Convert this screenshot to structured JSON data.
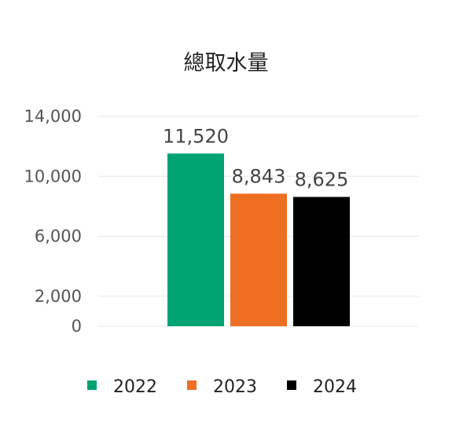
{
  "chart_data": {
    "type": "bar",
    "title": "總取水量",
    "categories": [
      ""
    ],
    "series": [
      {
        "name": "2022",
        "values": [
          11520
        ],
        "color": "#00A372",
        "label": "11,520"
      },
      {
        "name": "2023",
        "values": [
          8843
        ],
        "color": "#EE6E22",
        "label": "8,843"
      },
      {
        "name": "2024",
        "values": [
          8625
        ],
        "color": "#000000",
        "label": "8,625"
      }
    ],
    "y_ticks": [
      "0",
      "2,000",
      "6,000",
      "10,000",
      "14,000"
    ],
    "ylim": [
      0,
      14000
    ],
    "grid": true,
    "legend_position": "bottom"
  }
}
